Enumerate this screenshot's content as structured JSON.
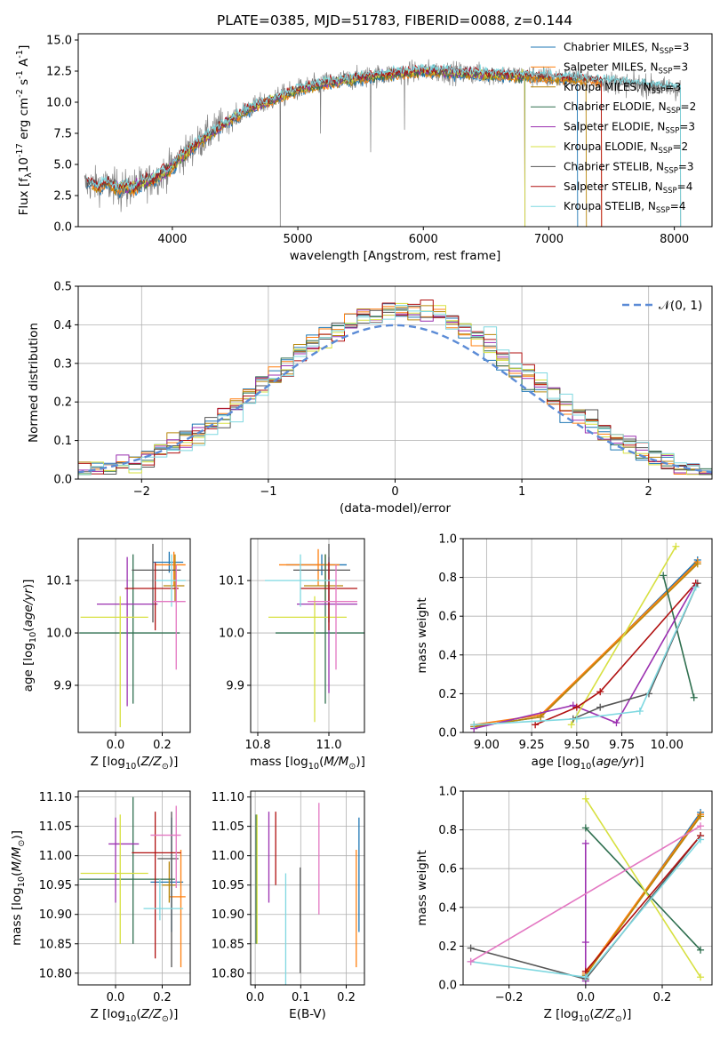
{
  "figure": {
    "title": "PLATE=0385, MJD=51783, FIBERID=0088, z=0.144"
  },
  "colors": {
    "blue": "#1f77b4",
    "orange": "#ff7f0e",
    "olive": "#b8860b",
    "green": "#2f6f4f",
    "purple": "#9b30b0",
    "yellow": "#d7e040",
    "dark": "#555555",
    "red": "#b01010",
    "cyan": "#7fd8e0",
    "pink": "#e377c2",
    "data": "#7f7f7f",
    "normal": "#5b8bd6",
    "grid": "#b0b0b0"
  },
  "chart_data": [
    {
      "id": "spectrum",
      "type": "line",
      "xlabel": "wavelength [Angstrom, rest frame]",
      "ylabel": "Flux [f$_\\lambda$10$^{-17}$ erg cm$^{-2}$ s$^{-1}$ A$^{-1}$]",
      "xlim": [
        3250,
        8300
      ],
      "ylim": [
        0,
        15.5
      ],
      "xticks": [
        "4000",
        "5000",
        "6000",
        "7000",
        "8000"
      ],
      "yticks": [
        "0.0",
        "2.5",
        "5.0",
        "7.5",
        "10.0",
        "12.5",
        "15.0"
      ],
      "grid": false,
      "legend_position": "top-right",
      "legend": [
        {
          "label": "Chabrier MILES, N",
          "sub": "SSP",
          "tail": "=3",
          "color": "blue"
        },
        {
          "label": "Salpeter MILES, N",
          "sub": "SSP",
          "tail": "=3",
          "color": "orange"
        },
        {
          "label": "Kroupa MILES, N",
          "sub": "SSP",
          "tail": "=3",
          "color": "olive"
        },
        {
          "label": "Chabrier ELODIE, N",
          "sub": "SSP",
          "tail": "=2",
          "color": "green"
        },
        {
          "label": "Salpeter ELODIE, N",
          "sub": "SSP",
          "tail": "=3",
          "color": "purple"
        },
        {
          "label": "Kroupa ELODIE, N",
          "sub": "SSP",
          "tail": "=2",
          "color": "yellow"
        },
        {
          "label": "Chabrier STELIB, N",
          "sub": "SSP",
          "tail": "=3",
          "color": "dark"
        },
        {
          "label": "Salpeter STELIB, N",
          "sub": "SSP",
          "tail": "=4",
          "color": "red"
        },
        {
          "label": "Kroupa STELIB, N",
          "sub": "SSP",
          "tail": "=4",
          "color": "cyan"
        }
      ],
      "continuum": {
        "x": [
          3300,
          3500,
          3650,
          3800,
          3950,
          4050,
          4200,
          4400,
          4600,
          4800,
          5000,
          5200,
          5400,
          5600,
          5800,
          6000,
          6200,
          6400,
          6600,
          6800,
          7000,
          7200,
          7400,
          7600,
          7800,
          8050
        ],
        "y": [
          3.4,
          3.3,
          3.1,
          3.6,
          4.4,
          5.4,
          6.7,
          8.2,
          9.4,
          10.2,
          11.0,
          11.5,
          11.8,
          12.1,
          12.3,
          12.5,
          12.4,
          12.3,
          12.2,
          12.1,
          12.0,
          11.9,
          11.7,
          11.5,
          11.3,
          11.0
        ]
      },
      "data_range": [
        3300,
        8050
      ],
      "model_ranges": [
        [
          3320,
          7230
        ],
        [
          3350,
          7420
        ],
        [
          3360,
          7300
        ],
        [
          3540,
          6810
        ],
        [
          3530,
          6810
        ],
        [
          3530,
          6810
        ],
        [
          3320,
          8050
        ],
        [
          3320,
          7420
        ],
        [
          3320,
          8050
        ]
      ]
    },
    {
      "id": "residuals",
      "type": "line",
      "xlabel": "(data-model)/error",
      "ylabel": "Normed distribution",
      "xlim": [
        -2.5,
        2.5
      ],
      "ylim": [
        0,
        0.5
      ],
      "xticks": [
        -2,
        -1,
        0,
        1,
        2
      ],
      "yticks": [
        "0.0",
        "0.1",
        "0.2",
        "0.3",
        "0.4",
        "0.5"
      ],
      "grid": true,
      "legend_position": "top-right",
      "legend": [
        {
          "label": "𝒩(0, 1)",
          "color": "normal"
        }
      ],
      "bin_width": 0.1,
      "histogram_count": 9
    },
    {
      "id": "age-vs-Z",
      "type": "scatter",
      "xlabel": "Z [log$_{10}$($Z/Z_\\odot$)]",
      "ylabel": "age  [log$_{10}$($age/yr$)]",
      "xlim": [
        -0.16,
        0.32
      ],
      "ylim": [
        9.81,
        10.18
      ],
      "xticks": [
        "0.0",
        "0.2"
      ],
      "yticks": [
        "9.9",
        "10.0",
        "10.1"
      ],
      "grid": true,
      "points": [
        {
          "color": "blue",
          "x": 0.23,
          "y": 10.135,
          "xerr": [
            0.07,
            0.06
          ],
          "yerr": [
            0.02,
            0.02
          ]
        },
        {
          "color": "orange",
          "x": 0.25,
          "y": 10.13,
          "xerr": [
            0.08,
            0.05
          ],
          "yerr": [
            0.04,
            0.025
          ]
        },
        {
          "color": "olive",
          "x": 0.255,
          "y": 10.09,
          "xerr": [
            0.05,
            0.04
          ],
          "yerr": [
            0.03,
            0.06
          ]
        },
        {
          "color": "green",
          "x": 0.075,
          "y": 10.0,
          "xerr": [
            0.23,
            0.2
          ],
          "yerr": [
            0.135,
            0.15
          ]
        },
        {
          "color": "purple",
          "x": 0.05,
          "y": 10.055,
          "xerr": [
            0.13,
            0.13
          ],
          "yerr": [
            0.195,
            0.09
          ]
        },
        {
          "color": "yellow",
          "x": 0.02,
          "y": 10.03,
          "xerr": [
            0.17,
            0.12
          ],
          "yerr": [
            0.21,
            0.04
          ]
        },
        {
          "color": "dark",
          "x": 0.16,
          "y": 10.12,
          "xerr": [
            0.09,
            0.12
          ],
          "yerr": [
            0.1,
            0.05
          ]
        },
        {
          "color": "red",
          "x": 0.17,
          "y": 10.085,
          "xerr": [
            0.13,
            0.1
          ],
          "yerr": [
            0.08,
            0.05
          ]
        },
        {
          "color": "cyan",
          "x": 0.24,
          "y": 10.1,
          "xerr": [
            0.07,
            0.06
          ],
          "yerr": [
            0.05,
            0.05
          ]
        },
        {
          "color": "pink",
          "x": 0.26,
          "y": 10.06,
          "xerr": [
            0.1,
            0.04
          ],
          "yerr": [
            0.13,
            0.07
          ]
        }
      ]
    },
    {
      "id": "age-vs-mass",
      "type": "scatter",
      "xlabel": "mass [log$_{10}$($M/M_\\odot$)]",
      "ylabel": "",
      "xlim": [
        10.78,
        11.1
      ],
      "ylim": [
        9.81,
        10.18
      ],
      "xticks": [
        "10.8",
        "11.0"
      ],
      "yticks": [
        "9.9",
        "10.0",
        "10.1"
      ],
      "grid": true,
      "points": [
        {
          "color": "blue",
          "x": 10.98,
          "y": 10.13,
          "xerr": [
            0.1,
            0.07
          ],
          "yerr": [
            0.02,
            0.02
          ]
        },
        {
          "color": "orange",
          "x": 10.97,
          "y": 10.13,
          "xerr": [
            0.11,
            0.06
          ],
          "yerr": [
            0.04,
            0.03
          ]
        },
        {
          "color": "olive",
          "x": 10.99,
          "y": 10.09,
          "xerr": [
            0.06,
            0.05
          ],
          "yerr": [
            0.03,
            0.06
          ]
        },
        {
          "color": "green",
          "x": 10.99,
          "y": 10.0,
          "xerr": [
            0.14,
            0.11
          ],
          "yerr": [
            0.135,
            0.15
          ]
        },
        {
          "color": "purple",
          "x": 11.0,
          "y": 10.055,
          "xerr": [
            0.09,
            0.08
          ],
          "yerr": [
            0.17,
            0.09
          ]
        },
        {
          "color": "yellow",
          "x": 10.96,
          "y": 10.03,
          "xerr": [
            0.13,
            0.09
          ],
          "yerr": [
            0.2,
            0.04
          ]
        },
        {
          "color": "dark",
          "x": 11.0,
          "y": 10.12,
          "xerr": [
            0.1,
            0.06
          ],
          "yerr": [
            0.1,
            0.05
          ]
        },
        {
          "color": "red",
          "x": 11.0,
          "y": 10.085,
          "xerr": [
            0.08,
            0.08
          ],
          "yerr": [
            0.08,
            0.05
          ]
        },
        {
          "color": "cyan",
          "x": 10.92,
          "y": 10.1,
          "xerr": [
            0.1,
            0.1
          ],
          "yerr": [
            0.05,
            0.05
          ]
        },
        {
          "color": "pink",
          "x": 11.02,
          "y": 10.06,
          "xerr": [
            0.08,
            0.06
          ],
          "yerr": [
            0.13,
            0.07
          ]
        }
      ]
    },
    {
      "id": "weight-vs-age",
      "type": "line",
      "xlabel": "age  [log$_{10}$($age/yr$)]",
      "ylabel": "mass weight",
      "xlim": [
        8.87,
        10.25
      ],
      "ylim": [
        0,
        1
      ],
      "xticks": [
        "9.00",
        "9.25",
        "9.50",
        "9.75",
        "10.00"
      ],
      "yticks": [
        "0.0",
        "0.2",
        "0.4",
        "0.6",
        "0.8",
        "1.0"
      ],
      "grid": true,
      "series": [
        {
          "color": "blue",
          "x": [
            8.93,
            9.3,
            10.17
          ],
          "y": [
            0.03,
            0.08,
            0.89
          ]
        },
        {
          "color": "orange",
          "x": [
            8.93,
            9.3,
            10.17
          ],
          "y": [
            0.04,
            0.09,
            0.88
          ]
        },
        {
          "color": "olive",
          "x": [
            8.93,
            9.3,
            10.17
          ],
          "y": [
            0.03,
            0.08,
            0.87
          ]
        },
        {
          "color": "green",
          "x": [
            9.98,
            10.15
          ],
          "y": [
            0.81,
            0.18
          ]
        },
        {
          "color": "purple",
          "x": [
            8.93,
            9.48,
            9.72,
            10.16
          ],
          "y": [
            0.02,
            0.14,
            0.05,
            0.77
          ]
        },
        {
          "color": "yellow",
          "x": [
            9.47,
            10.05
          ],
          "y": [
            0.04,
            0.96
          ]
        },
        {
          "color": "dark",
          "x": [
            9.48,
            9.63,
            9.9,
            10.17
          ],
          "y": [
            0.07,
            0.13,
            0.2,
            0.77
          ]
        },
        {
          "color": "red",
          "x": [
            9.27,
            9.5,
            9.63,
            10.16
          ],
          "y": [
            0.04,
            0.13,
            0.21,
            0.77
          ]
        },
        {
          "color": "cyan",
          "x": [
            8.93,
            9.5,
            9.85,
            10.16
          ],
          "y": [
            0.04,
            0.07,
            0.11,
            0.75
          ]
        }
      ]
    },
    {
      "id": "mass-vs-Z",
      "type": "scatter",
      "xlabel": "Z [log$_{10}$($Z/Z_\\odot$)]",
      "ylabel": "mass [log$_{10}$($M/M_\\odot$)]",
      "xlim": [
        -0.16,
        0.32
      ],
      "ylim": [
        10.78,
        11.11
      ],
      "xticks": [
        "0.0",
        "0.2"
      ],
      "yticks": [
        "10.80",
        "10.85",
        "10.90",
        "10.95",
        "11.00",
        "11.05",
        "11.10"
      ],
      "grid": true,
      "points": [
        {
          "color": "blue",
          "x": 0.24,
          "y": 10.955,
          "xerr": [
            0.09,
            0.05
          ],
          "yerr": [
            0.085,
            0.11
          ]
        },
        {
          "color": "orange",
          "x": 0.28,
          "y": 10.93,
          "xerr": [
            0.05,
            0.02
          ],
          "yerr": [
            0.12,
            0.08
          ]
        },
        {
          "color": "olive",
          "x": 0.23,
          "y": 10.95,
          "xerr": [
            0.03,
            0.03
          ],
          "yerr": [
            0.03,
            0.04
          ]
        },
        {
          "color": "green",
          "x": 0.075,
          "y": 10.96,
          "xerr": [
            0.23,
            0.18
          ],
          "yerr": [
            0.11,
            0.14
          ]
        },
        {
          "color": "purple",
          "x": 0.0,
          "y": 11.02,
          "xerr": [
            0.03,
            0.1
          ],
          "yerr": [
            0.1,
            0.045
          ]
        },
        {
          "color": "yellow",
          "x": 0.02,
          "y": 10.97,
          "xerr": [
            0.17,
            0.12
          ],
          "yerr": [
            0.12,
            0.1
          ]
        },
        {
          "color": "dark",
          "x": 0.24,
          "y": 10.995,
          "xerr": [
            0.06,
            0.03
          ],
          "yerr": [
            0.185,
            0.08
          ]
        },
        {
          "color": "red",
          "x": 0.17,
          "y": 11.005,
          "xerr": [
            0.1,
            0.11
          ],
          "yerr": [
            0.18,
            0.07
          ]
        },
        {
          "color": "cyan",
          "x": 0.19,
          "y": 10.91,
          "xerr": [
            0.07,
            0.1
          ],
          "yerr": [
            0.02,
            0.05
          ]
        },
        {
          "color": "pink",
          "x": 0.26,
          "y": 11.035,
          "xerr": [
            0.11,
            0.02
          ],
          "yerr": [
            0.09,
            0.05
          ]
        }
      ]
    },
    {
      "id": "mass-vs-ebv",
      "type": "scatter",
      "xlabel": "E(B-V)",
      "ylabel": "",
      "xlim": [
        -0.01,
        0.24
      ],
      "ylim": [
        10.78,
        11.11
      ],
      "xticks": [
        "0.0",
        "0.1",
        "0.2"
      ],
      "yticks": [
        "10.80",
        "10.85",
        "10.90",
        "10.95",
        "11.00",
        "11.05",
        "11.10"
      ],
      "grid": true,
      "points": [
        {
          "color": "blue",
          "x": 0.228,
          "y": 10.955,
          "yerr": [
            0.085,
            0.11
          ]
        },
        {
          "color": "orange",
          "x": 0.222,
          "y": 10.93,
          "yerr": [
            0.12,
            0.08
          ]
        },
        {
          "color": "green",
          "x": 0.002,
          "y": 10.95,
          "yerr": [
            0.1,
            0.12
          ]
        },
        {
          "color": "purple",
          "x": 0.03,
          "y": 11.02,
          "yerr": [
            0.1,
            0.055
          ]
        },
        {
          "color": "yellow",
          "x": 0.004,
          "y": 10.97,
          "yerr": [
            0.12,
            0.1
          ]
        },
        {
          "color": "dark",
          "x": 0.099,
          "y": 10.9,
          "yerr": [
            0.1,
            0.08
          ]
        },
        {
          "color": "red",
          "x": 0.045,
          "y": 11.02,
          "yerr": [
            0.07,
            0.055
          ]
        },
        {
          "color": "cyan",
          "x": 0.067,
          "y": 10.88,
          "yerr": [
            0.1,
            0.09
          ]
        },
        {
          "color": "pink",
          "x": 0.14,
          "y": 11.0,
          "yerr": [
            0.1,
            0.09
          ]
        }
      ]
    },
    {
      "id": "weight-vs-Z",
      "type": "line",
      "xlabel": "Z [log$_{10}$($Z/Z_\\odot$)]",
      "ylabel": "mass weight",
      "xlim": [
        -0.32,
        0.33
      ],
      "ylim": [
        0,
        1
      ],
      "xticks": [
        "−0.2",
        "0.0",
        "0.2"
      ],
      "yticks": [
        "0.0",
        "0.2",
        "0.4",
        "0.6",
        "0.8",
        "1.0"
      ],
      "grid": true,
      "series": [
        {
          "color": "blue",
          "x": [
            0.0,
            0.3
          ],
          "y": [
            0.05,
            0.89
          ]
        },
        {
          "color": "orange",
          "x": [
            0.0,
            0.3
          ],
          "y": [
            0.06,
            0.88
          ]
        },
        {
          "color": "olive",
          "x": [
            0.0,
            0.3
          ],
          "y": [
            0.05,
            0.87
          ]
        },
        {
          "color": "green",
          "x": [
            0.0,
            0.3
          ],
          "y": [
            0.81,
            0.18
          ]
        },
        {
          "color": "purple",
          "x": [
            0.0,
            0.0,
            0.0
          ],
          "y": [
            0.02,
            0.22,
            0.73
          ]
        },
        {
          "color": "yellow",
          "x": [
            0.0,
            0.3
          ],
          "y": [
            0.96,
            0.04
          ]
        },
        {
          "color": "dark",
          "x": [
            -0.3,
            0.0,
            0.3
          ],
          "y": [
            0.19,
            0.03,
            0.77
          ]
        },
        {
          "color": "red",
          "x": [
            0.0,
            0.3
          ],
          "y": [
            0.07,
            0.77
          ]
        },
        {
          "color": "cyan",
          "x": [
            -0.3,
            0.0,
            0.3
          ],
          "y": [
            0.12,
            0.04,
            0.75
          ]
        },
        {
          "color": "pink",
          "x": [
            -0.3,
            0.3
          ],
          "y": [
            0.12,
            0.82
          ]
        }
      ]
    }
  ]
}
